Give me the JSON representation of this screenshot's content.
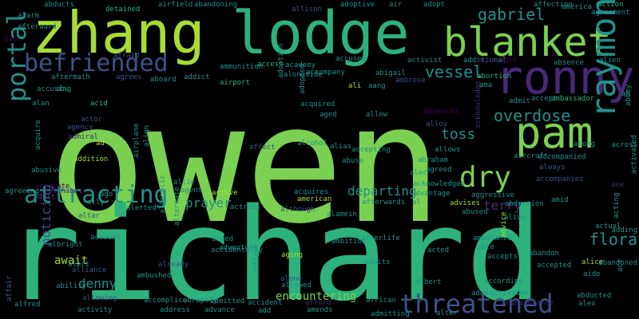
{
  "background": "#000000",
  "palette": {
    "lime": "#7ad151",
    "green": "#2db27d",
    "teal": "#21918c",
    "blue": "#3b528b",
    "purple": "#482878",
    "yellow": "#a8db34",
    "dark": "#440154"
  },
  "words": [
    {
      "text": "owen"
    },
    {
      "text": "richard"
    },
    {
      "text": "zhang"
    },
    {
      "text": "lodge"
    },
    {
      "text": "blanket"
    },
    {
      "text": "ronny"
    },
    {
      "text": "pam"
    },
    {
      "text": "befriended"
    },
    {
      "text": "raymond"
    },
    {
      "text": "portal"
    },
    {
      "text": "threatened"
    },
    {
      "text": "dry"
    },
    {
      "text": "overdose"
    },
    {
      "text": "gabriel"
    },
    {
      "text": "vessel"
    },
    {
      "text": "attracting"
    },
    {
      "text": "toss"
    },
    {
      "text": "flora"
    },
    {
      "text": "encountering"
    },
    {
      "text": "await"
    },
    {
      "text": "noticing"
    },
    {
      "text": "denny"
    },
    {
      "text": "departing"
    },
    {
      "text": "prayer"
    },
    {
      "text": "terry"
    },
    {
      "text": "abducts"
    },
    {
      "text": "alarm"
    },
    {
      "text": "afterward"
    },
    {
      "text": "detained"
    },
    {
      "text": "airfield"
    },
    {
      "text": "abandoning"
    },
    {
      "text": "allison"
    },
    {
      "text": "adoptive"
    },
    {
      "text": "air"
    },
    {
      "text": "adopt"
    },
    {
      "text": "affection"
    },
    {
      "text": "america"
    },
    {
      "text": "action"
    },
    {
      "text": "agreement"
    },
    {
      "text": "afraid"
    },
    {
      "text": "ammunition"
    },
    {
      "text": "access"
    },
    {
      "text": "academy"
    },
    {
      "text": "alongside"
    },
    {
      "text": "accused"
    },
    {
      "text": "activist"
    },
    {
      "text": "additional"
    },
    {
      "text": "alexander"
    },
    {
      "text": "absence"
    },
    {
      "text": "alien"
    },
    {
      "text": "aftermath"
    },
    {
      "text": "agrees"
    },
    {
      "text": "aboard"
    },
    {
      "text": "addict"
    },
    {
      "text": "airport"
    },
    {
      "text": "accompany"
    },
    {
      "text": "abigail"
    },
    {
      "text": "ambrose"
    },
    {
      "text": "abortion"
    },
    {
      "text": "accusing"
    },
    {
      "text": "abu"
    },
    {
      "text": "ali"
    },
    {
      "text": "aang"
    },
    {
      "text": "allow"
    },
    {
      "text": "ambassador"
    },
    {
      "text": "accept"
    },
    {
      "text": "admit"
    },
    {
      "text": "alan"
    },
    {
      "text": "acid"
    },
    {
      "text": "acquired"
    },
    {
      "text": "aged"
    },
    {
      "text": "advanced"
    },
    {
      "text": "actor"
    },
    {
      "text": "agency"
    },
    {
      "text": "admiral"
    },
    {
      "text": "alloy"
    },
    {
      "text": "acknowledge"
    },
    {
      "text": "alcohol"
    },
    {
      "text": "alias"
    },
    {
      "text": "accepting"
    },
    {
      "text": "allows"
    },
    {
      "text": "aircraft"
    },
    {
      "text": "along"
    },
    {
      "text": "across"
    },
    {
      "text": "acquire"
    },
    {
      "text": "ad"
    },
    {
      "text": "affect"
    },
    {
      "text": "abraham"
    },
    {
      "text": "abuse"
    },
    {
      "text": "accompanied"
    },
    {
      "text": "addition"
    },
    {
      "text": "always"
    },
    {
      "text": "abusive"
    },
    {
      "text": "alec"
    },
    {
      "text": "agreed"
    },
    {
      "text": "accompanies"
    },
    {
      "text": "activated"
    },
    {
      "text": "agreeing"
    },
    {
      "text": "activate"
    },
    {
      "text": "alphabet"
    },
    {
      "text": "allie"
    },
    {
      "text": "agent"
    },
    {
      "text": "active"
    },
    {
      "text": "acquires"
    },
    {
      "text": "acknowledged"
    },
    {
      "text": "advantage"
    },
    {
      "text": "aggressive"
    },
    {
      "text": "amid"
    },
    {
      "text": "adult"
    },
    {
      "text": "ago"
    },
    {
      "text": "american"
    },
    {
      "text": "afterwards"
    },
    {
      "text": "al"
    },
    {
      "text": "advises"
    },
    {
      "text": "abduction"
    },
    {
      "text": "ally"
    },
    {
      "text": "alerted"
    },
    {
      "text": "actress"
    },
    {
      "text": "although"
    },
    {
      "text": "abused"
    },
    {
      "text": "alive"
    },
    {
      "text": "actual"
    },
    {
      "text": "altar"
    },
    {
      "text": "account"
    },
    {
      "text": "aided"
    },
    {
      "text": "alamein"
    },
    {
      "text": "ambulance"
    },
    {
      "text": "adding"
    },
    {
      "text": "alcoholic"
    },
    {
      "text": "adventure"
    },
    {
      "text": "ambition"
    },
    {
      "text": "afterlife"
    },
    {
      "text": "able"
    },
    {
      "text": "advice"
    },
    {
      "text": "albright"
    },
    {
      "text": "alert"
    },
    {
      "text": "alliance"
    },
    {
      "text": "accidentally"
    },
    {
      "text": "achieve"
    },
    {
      "text": "aging"
    },
    {
      "text": "admits"
    },
    {
      "text": "accepts"
    },
    {
      "text": "abandon"
    },
    {
      "text": "alice"
    },
    {
      "text": "abandoned"
    },
    {
      "text": "already"
    },
    {
      "text": "ambushed"
    },
    {
      "text": "alone"
    },
    {
      "text": "allowed"
    },
    {
      "text": "albert"
    },
    {
      "text": "according"
    },
    {
      "text": "accepted"
    },
    {
      "text": "aide"
    },
    {
      "text": "ability"
    },
    {
      "text": "allowing"
    },
    {
      "text": "accomplice"
    },
    {
      "text": "abruptly"
    },
    {
      "text": "admitted"
    },
    {
      "text": "accident"
    },
    {
      "text": "afford"
    },
    {
      "text": "african"
    },
    {
      "text": "adam"
    },
    {
      "text": "activates"
    },
    {
      "text": "acquaintance"
    },
    {
      "text": "abducted"
    },
    {
      "text": "alex"
    },
    {
      "text": "affair"
    },
    {
      "text": "alfred"
    },
    {
      "text": "activity"
    },
    {
      "text": "address"
    },
    {
      "text": "advance"
    },
    {
      "text": "add"
    },
    {
      "text": "amends"
    },
    {
      "text": "admitting"
    },
    {
      "text": "alter"
    },
    {
      "text": "acting"
    },
    {
      "text": "adoption"
    },
    {
      "text": "adopted"
    },
    {
      "text": "airplane"
    },
    {
      "text": "align"
    },
    {
      "text": "aid"
    },
    {
      "text": "ah"
    },
    {
      "text": "abbey"
    },
    {
      "text": "ace"
    },
    {
      "text": "alternate"
    },
    {
      "text": "acted"
    },
    {
      "text": "act"
    },
    {
      "text": "ama"
    }
  ]
}
